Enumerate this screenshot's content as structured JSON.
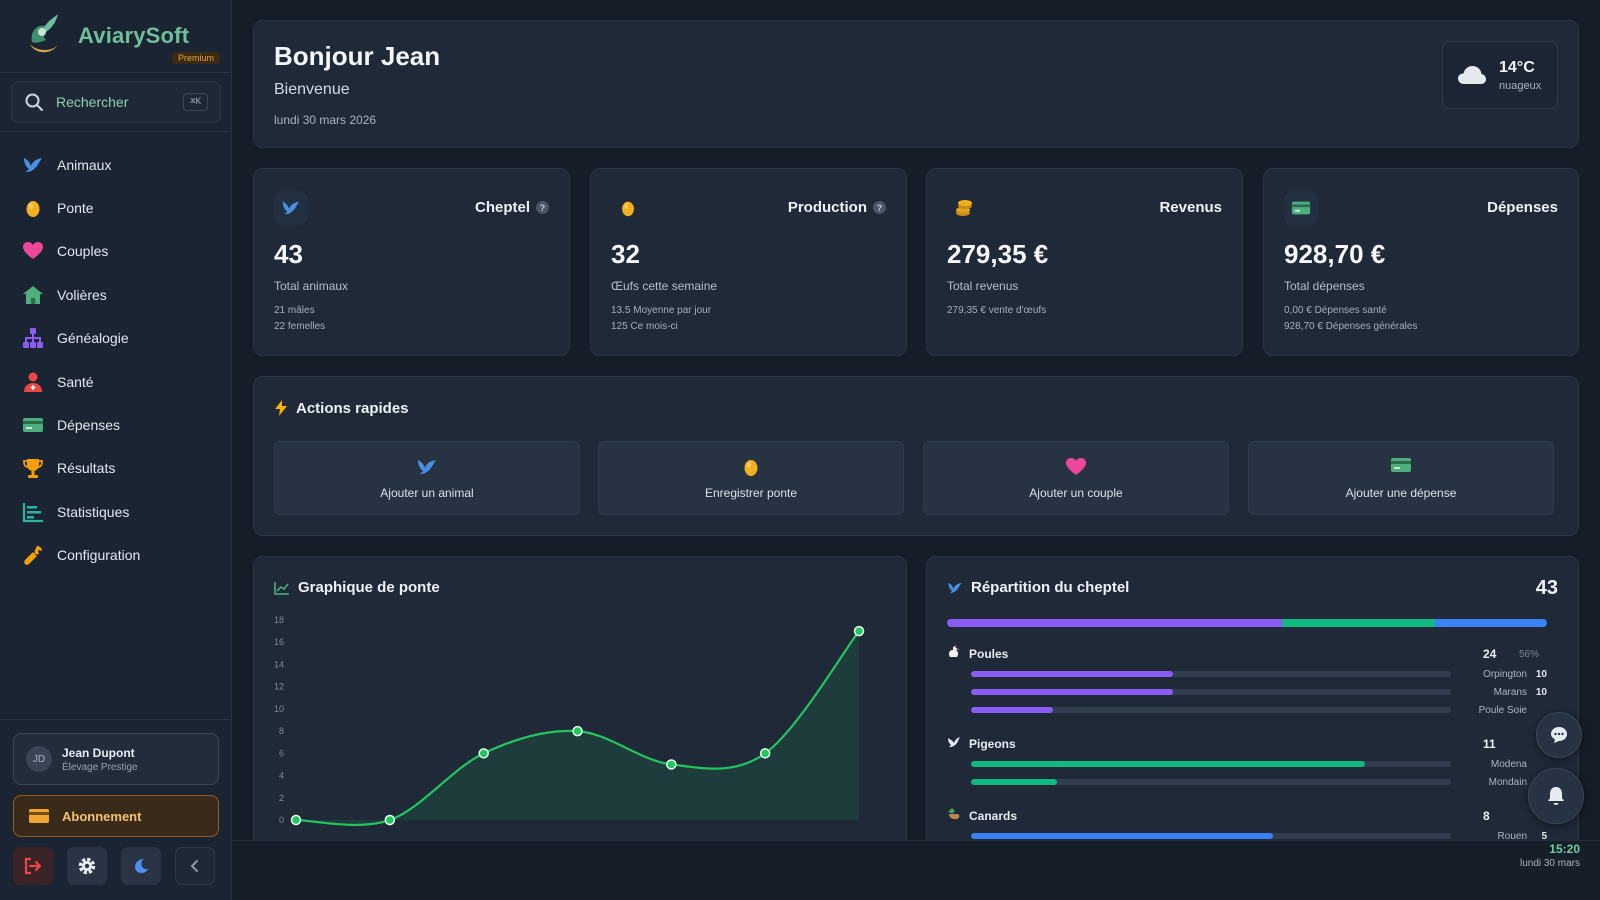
{
  "app": {
    "name": "AviarySoft",
    "badge": "Premium"
  },
  "search": {
    "label": "Rechercher",
    "shortcut": "⌘K"
  },
  "sidebar": {
    "items": [
      {
        "label": "Animaux",
        "icon": "bird-icon",
        "color": "#4a90e2"
      },
      {
        "label": "Ponte",
        "icon": "egg-icon",
        "color": "#f2b01e"
      },
      {
        "label": "Couples",
        "icon": "heart-icon",
        "color": "#ec4899"
      },
      {
        "label": "Volières",
        "icon": "house-icon",
        "color": "#4caf7d"
      },
      {
        "label": "Généalogie",
        "icon": "tree-icon",
        "color": "#8b5cf6"
      },
      {
        "label": "Santé",
        "icon": "health-icon",
        "color": "#ef4444"
      },
      {
        "label": "Dépenses",
        "icon": "card-icon",
        "color": "#4caf7d"
      },
      {
        "label": "Résultats",
        "icon": "trophy-icon",
        "color": "#f59e0b"
      },
      {
        "label": "Statistiques",
        "icon": "chart-icon",
        "color": "#22b8a0"
      },
      {
        "label": "Configuration",
        "icon": "wrench-icon",
        "color": "#f59e0b"
      }
    ]
  },
  "user": {
    "initials": "JD",
    "name": "Jean Dupont",
    "subtitle": "Élevage Prestige"
  },
  "subscription": {
    "label": "Abonnement"
  },
  "header": {
    "greeting": "Bonjour Jean",
    "welcome": "Bienvenue",
    "date": "lundi 30 mars 2026",
    "weather": {
      "temp": "14°C",
      "condition": "nuageux",
      "icon": "cloud-icon"
    }
  },
  "stats": [
    {
      "title": "Cheptel",
      "help": "?",
      "value": "43",
      "label": "Total animaux",
      "detail1": "21 mâles",
      "detail2": "22 femelles",
      "icon": "bird-icon"
    },
    {
      "title": "Production",
      "help": "?",
      "value": "32",
      "label": "Œufs cette semaine",
      "detail1": "13.5 Moyenne par jour",
      "detail2": "125 Ce mois-ci",
      "icon": "egg-icon"
    },
    {
      "title": "Revenus",
      "value": "279,35 €",
      "label": "Total revenus",
      "detail1": "279,35 € vente d'œufs",
      "icon": "coins-icon"
    },
    {
      "title": "Dépenses",
      "value": "928,70 €",
      "label": "Total dépenses",
      "detail1": "0,00 € Dépenses santé",
      "detail2": "928,70 € Dépenses générales",
      "icon": "card-icon"
    }
  ],
  "quick_actions": {
    "title": "Actions rapides",
    "items": [
      {
        "label": "Ajouter un animal",
        "icon": "bird-icon"
      },
      {
        "label": "Enregistrer ponte",
        "icon": "egg-icon"
      },
      {
        "label": "Ajouter un couple",
        "icon": "heart-icon"
      },
      {
        "label": "Ajouter une dépense",
        "icon": "card-icon"
      }
    ]
  },
  "laying_chart": {
    "title": "Graphique de ponte"
  },
  "chart_data": {
    "type": "area",
    "title": "Graphique de ponte",
    "x": [
      0,
      1,
      2,
      3,
      4,
      5,
      6
    ],
    "values": [
      0,
      0,
      6,
      8,
      5,
      6,
      17
    ],
    "ylim": [
      0,
      18
    ],
    "yticks": [
      0,
      2,
      4,
      6,
      8,
      10,
      12,
      14,
      16,
      18
    ],
    "color": "#22c55e",
    "grid": false
  },
  "distribution": {
    "title": "Répartition du cheptel",
    "total": "43",
    "bar": [
      {
        "value": 24,
        "color": "#8b5cf6"
      },
      {
        "value": 11,
        "color": "#10b981"
      },
      {
        "value": 8,
        "color": "#3b82f6"
      }
    ],
    "groups": [
      {
        "name": "Poules",
        "count": "24",
        "pct": "56%",
        "icon": "chicken-icon",
        "color": "#8b5cf6",
        "breeds": [
          {
            "name": "Orpington",
            "count": "10",
            "fraction": 0.42
          },
          {
            "name": "Marans",
            "count": "10",
            "fraction": 0.42
          },
          {
            "name": "Poule Soie",
            "count": "",
            "fraction": 0.17
          }
        ]
      },
      {
        "name": "Pigeons",
        "count": "11",
        "pct": "",
        "icon": "pigeon-icon",
        "color": "#10b981",
        "breeds": [
          {
            "name": "Modena",
            "count": "",
            "fraction": 0.82
          },
          {
            "name": "Mondain",
            "count": "",
            "fraction": 0.18
          }
        ]
      },
      {
        "name": "Canards",
        "count": "8",
        "pct": "",
        "icon": "duck-icon",
        "color": "#3b82f6",
        "breeds": [
          {
            "name": "Rouen",
            "count": "5",
            "fraction": 0.63
          }
        ]
      }
    ]
  },
  "clock": {
    "time": "15:20",
    "date": "lundi 30 mars"
  }
}
